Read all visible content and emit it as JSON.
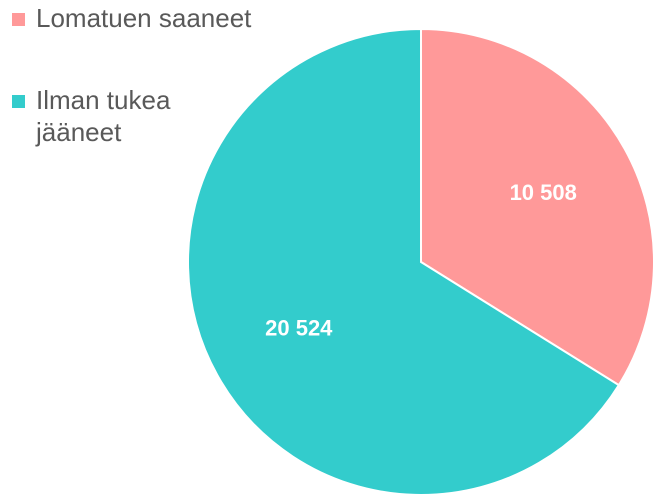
{
  "chart_data": {
    "type": "pie",
    "categories": [
      "Lomatuen saaneet",
      "Ilman tukea jääneet"
    ],
    "values": [
      10508,
      20524
    ],
    "value_labels": [
      "10 508",
      "20 524"
    ],
    "colors": [
      "#ff9999",
      "#33cccc"
    ],
    "legend": "left"
  }
}
